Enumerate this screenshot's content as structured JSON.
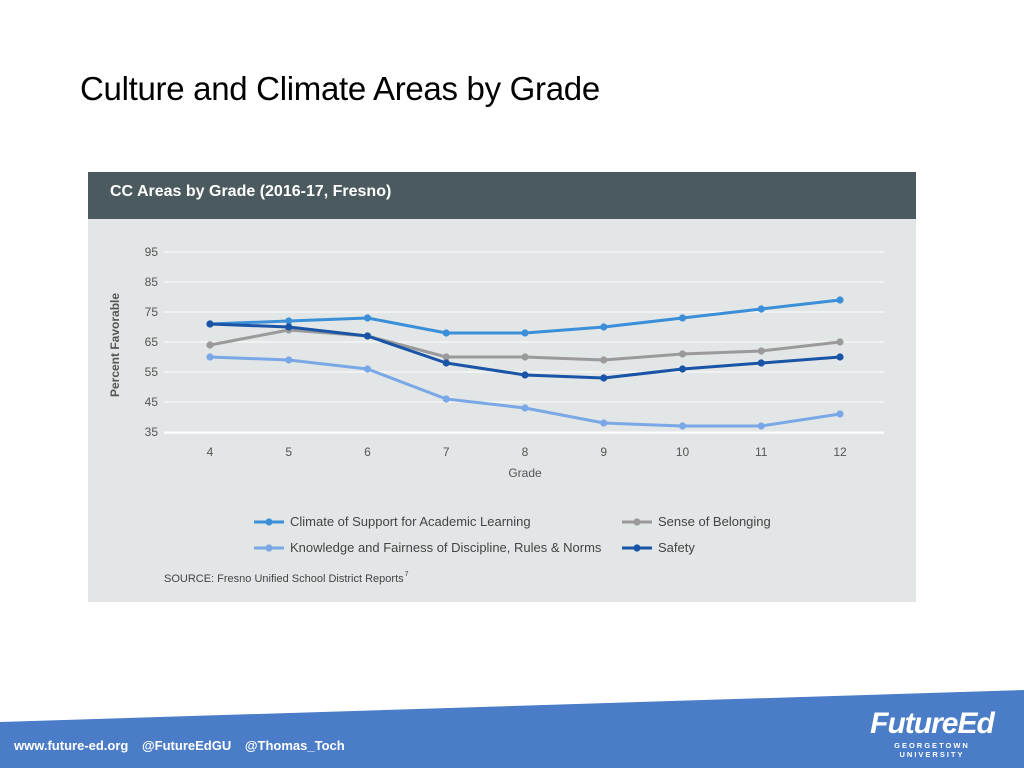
{
  "slide": {
    "title": "Culture and Climate Areas by Grade"
  },
  "chart_data": {
    "type": "line",
    "title": "CC Areas by Grade (2016-17, Fresno)",
    "xlabel": "Grade",
    "ylabel": "Percent Favorable",
    "categories": [
      "4",
      "5",
      "6",
      "7",
      "8",
      "9",
      "10",
      "11",
      "12"
    ],
    "yticks": [
      95,
      85,
      75,
      65,
      55,
      45,
      35
    ],
    "ylim": [
      35,
      95
    ],
    "grid": true,
    "legend_position": "bottom",
    "series": [
      {
        "name": "Climate of Support for Academic Learning",
        "color": "#3a8fd8",
        "values": [
          71,
          72,
          73,
          68,
          68,
          70,
          73,
          76,
          79
        ]
      },
      {
        "name": "Sense of Belonging",
        "color": "#9a9a9a",
        "values": [
          64,
          69,
          67,
          60,
          60,
          59,
          61,
          62,
          65
        ]
      },
      {
        "name": "Knowledge and Fairness of Discipline, Rules & Norms",
        "color": "#7aa8e6",
        "values": [
          60,
          59,
          56,
          46,
          43,
          38,
          37,
          37,
          41
        ]
      },
      {
        "name": "Safety",
        "color": "#1a54a6",
        "values": [
          71,
          70,
          67,
          58,
          54,
          53,
          56,
          58,
          60
        ]
      }
    ],
    "source": "SOURCE: Fresno Unified School District Reports",
    "source_superscript": "7"
  },
  "footer": {
    "links": [
      "www.future-ed.org",
      "@FutureEdGU",
      "@Thomas_Toch"
    ],
    "brand_name": "FutureEd",
    "brand_sub": "GEORGETOWN UNIVERSITY",
    "band_color": "#4a7cc7"
  }
}
